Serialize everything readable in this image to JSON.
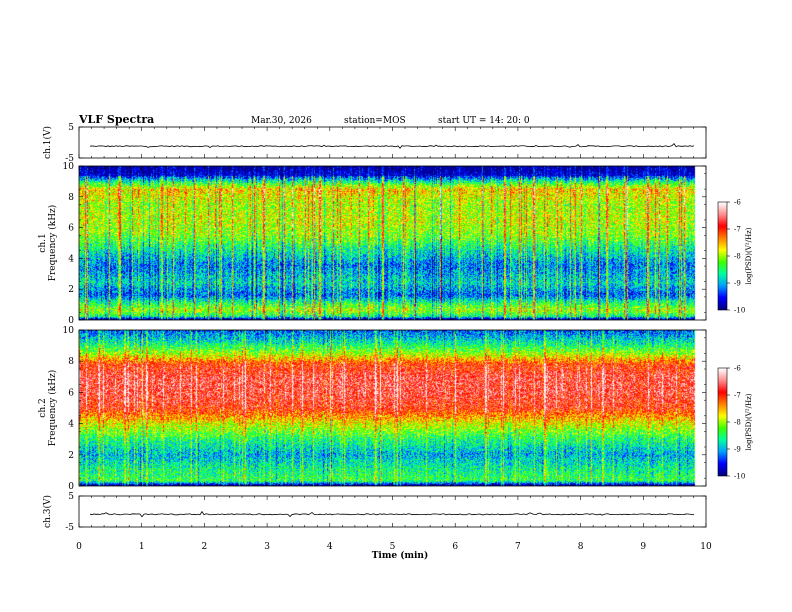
{
  "header": {
    "title": "VLF Spectra",
    "date": "Mar.30, 2026",
    "station": "station=MOS",
    "start": "start  UT =   14: 20: 0"
  },
  "chart_data": [
    {
      "type": "line",
      "panel": "ch1-waveform",
      "ylabel": "ch.1(V)",
      "yticks": [
        "5",
        "-5"
      ],
      "ylim": [
        -5,
        5
      ],
      "xlim": [
        0,
        10
      ],
      "series_level": -1.2,
      "data_end_min": 9.83
    },
    {
      "type": "heatmap",
      "panel": "ch1-spectrogram",
      "ylabel": "ch.1\nFrequency (kHz)",
      "yticks": [
        "0",
        "2",
        "4",
        "6",
        "8",
        "10"
      ],
      "ylim": [
        0,
        10
      ],
      "xlim": [
        0,
        10
      ],
      "data_end_min": 9.83,
      "colorbar": {
        "label": "log(PSD)(V²/Hz)",
        "ticks": [
          "-6",
          "-7",
          "-8",
          "-9",
          "-10"
        ],
        "range": [
          -10,
          -6
        ]
      },
      "profile": [
        {
          "f": 0.0,
          "v": -10
        },
        {
          "f": 0.2,
          "v": -8.6
        },
        {
          "f": 0.6,
          "v": -8.0
        },
        {
          "f": 1.0,
          "v": -8.4
        },
        {
          "f": 1.6,
          "v": -9.3
        },
        {
          "f": 2.4,
          "v": -8.8
        },
        {
          "f": 3.5,
          "v": -9.2
        },
        {
          "f": 4.5,
          "v": -8.7
        },
        {
          "f": 5.5,
          "v": -8.1
        },
        {
          "f": 6.5,
          "v": -7.9
        },
        {
          "f": 7.5,
          "v": -8.0
        },
        {
          "f": 8.5,
          "v": -7.6
        },
        {
          "f": 9.0,
          "v": -8.6
        },
        {
          "f": 9.4,
          "v": -9.6
        },
        {
          "f": 10.0,
          "v": -10
        }
      ]
    },
    {
      "type": "heatmap",
      "panel": "ch2-spectrogram",
      "ylabel": "ch.2\nFrequency (kHz)",
      "yticks": [
        "0",
        "2",
        "4",
        "6",
        "8",
        "10"
      ],
      "ylim": [
        0,
        10
      ],
      "xlim": [
        0,
        10
      ],
      "data_end_min": 9.83,
      "colorbar": {
        "label": "log(PSD)(V²/Hz)",
        "ticks": [
          "-6",
          "-7",
          "-8",
          "-9",
          "-10"
        ],
        "range": [
          -10,
          -6
        ]
      },
      "profile": [
        {
          "f": 0.0,
          "v": -10
        },
        {
          "f": 0.3,
          "v": -8.4
        },
        {
          "f": 1.0,
          "v": -8.6
        },
        {
          "f": 2.0,
          "v": -9.0
        },
        {
          "f": 3.0,
          "v": -8.5
        },
        {
          "f": 4.0,
          "v": -7.8
        },
        {
          "f": 5.0,
          "v": -6.9
        },
        {
          "f": 6.0,
          "v": -6.7
        },
        {
          "f": 7.0,
          "v": -6.7
        },
        {
          "f": 7.8,
          "v": -7.0
        },
        {
          "f": 8.5,
          "v": -8.0
        },
        {
          "f": 9.2,
          "v": -8.7
        },
        {
          "f": 10.0,
          "v": -9.3
        }
      ]
    },
    {
      "type": "line",
      "panel": "ch3-waveform",
      "ylabel": "ch.3(V)",
      "yticks": [
        "5",
        "-5"
      ],
      "ylim": [
        -5,
        5
      ],
      "xlim": [
        0,
        10
      ],
      "series_level": -0.9,
      "data_end_min": 9.83
    }
  ],
  "xaxis": {
    "label": "Time (min)",
    "ticks": [
      "0",
      "1",
      "2",
      "3",
      "4",
      "5",
      "6",
      "7",
      "8",
      "9",
      "10"
    ]
  },
  "colors": {
    "scale": [
      "#000080",
      "#0000ff",
      "#00a0ff",
      "#00ffa0",
      "#40ff00",
      "#ffff00",
      "#ff8000",
      "#ff0000",
      "#ff9090",
      "#ffffff"
    ]
  }
}
